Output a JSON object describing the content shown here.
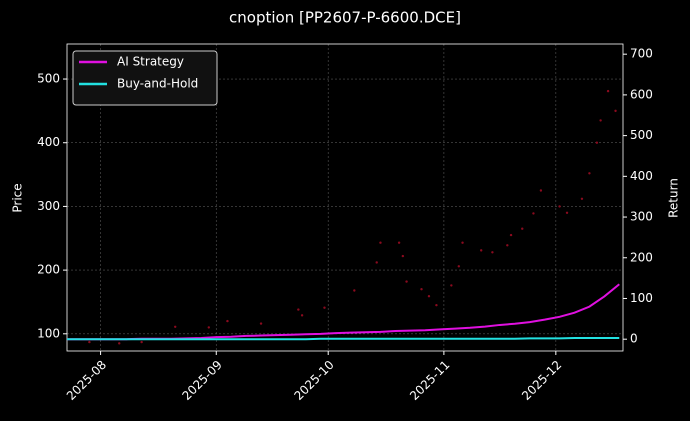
{
  "chart_data": {
    "type": "line",
    "title": "cnoption [PP2607-P-6600.DCE]",
    "ylabel": "Price",
    "y2label": "Return",
    "xlim": [
      0,
      149
    ],
    "xticks": [
      {
        "value": 9,
        "label": "2025-08"
      },
      {
        "value": 40,
        "label": "2025-09"
      },
      {
        "value": 70,
        "label": "2025-10"
      },
      {
        "value": 101,
        "label": "2025-11"
      },
      {
        "value": 131,
        "label": "2025-12"
      }
    ],
    "ylim": [
      73,
      555
    ],
    "yticks": [
      100,
      200,
      300,
      400,
      500
    ],
    "y2lim": [
      -29,
      725
    ],
    "y2ticks": [
      0,
      100,
      200,
      300,
      400,
      500,
      600,
      700
    ],
    "grid": true,
    "legend": "upper left",
    "x": [
      0,
      4,
      8,
      12,
      16,
      20,
      24,
      28,
      32,
      36,
      40,
      44,
      48,
      52,
      56,
      60,
      64,
      68,
      72,
      76,
      80,
      84,
      88,
      92,
      96,
      100,
      104,
      108,
      112,
      116,
      120,
      124,
      128,
      132,
      136,
      140,
      144,
      148
    ],
    "series": [
      {
        "color": "#8b0a1e",
        "axis": "y",
        "x": [
          6,
          14,
          20,
          29,
          38,
          43,
          52,
          63,
          62,
          69,
          77,
          83,
          84,
          89,
          90,
          91,
          95,
          97,
          99,
          103,
          105,
          106,
          111,
          114,
          118,
          119,
          122,
          125,
          127,
          132,
          134,
          138,
          140,
          142,
          143,
          145,
          147
        ],
        "values": [
          87,
          85,
          87,
          111,
          110,
          120,
          116,
          129,
          138,
          141,
          168,
          212,
          243,
          243,
          222,
          182,
          170,
          159,
          145,
          176,
          206,
          243,
          231,
          228,
          239,
          255,
          265,
          289,
          325,
          300,
          290,
          312,
          352,
          400,
          435,
          481,
          450
        ]
      },
      {
        "name": "AI Strategy",
        "color": "#e010e0",
        "axis": "y2",
        "values": [
          0,
          0,
          0,
          0,
          0,
          1,
          1,
          1,
          2,
          3,
          5,
          6,
          8,
          9,
          10,
          11,
          12,
          13,
          15,
          16,
          17,
          18,
          20,
          21,
          22,
          24,
          26,
          28,
          31,
          35,
          38,
          42,
          48,
          55,
          65,
          80,
          105,
          135
        ]
      },
      {
        "name": "Buy-and-Hold",
        "color": "#22e0e0",
        "axis": "y2",
        "values": [
          0,
          0,
          0,
          0,
          0,
          0,
          0,
          0,
          0,
          0,
          0,
          0,
          0,
          0,
          0,
          0,
          0,
          1,
          1,
          1,
          1,
          1,
          1,
          1,
          1,
          1,
          1,
          1,
          1,
          1,
          1,
          2,
          2,
          2,
          3,
          3,
          3,
          3
        ]
      }
    ]
  }
}
